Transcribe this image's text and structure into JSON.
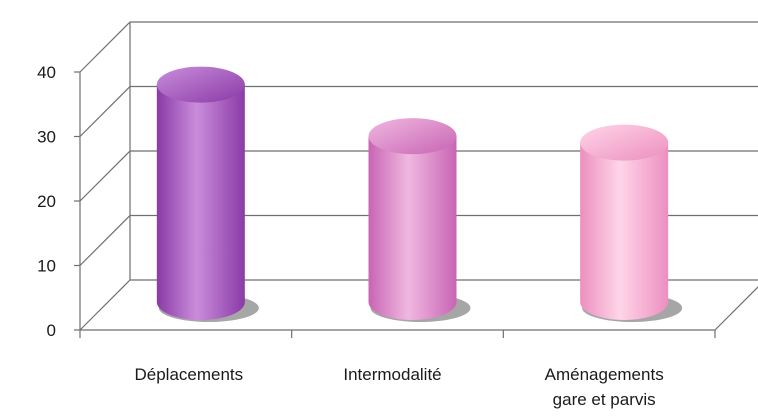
{
  "chart_data": {
    "type": "bar",
    "style": "3d-cylinder",
    "categories": [
      "Déplacements",
      "Intermodalité",
      [
        "Aménagements",
        "gare et parvis"
      ]
    ],
    "values": [
      36.5,
      28.5,
      27.5
    ],
    "ylim": [
      0,
      40
    ],
    "yticks": [
      0,
      10,
      20,
      30,
      40
    ],
    "grid": true,
    "legend": "none",
    "colors": {
      "bars": [
        "#8a3aa6",
        "#c864b4",
        "#ec8fbf"
      ],
      "bar_highlights": [
        "#c98ddb",
        "#f0b8e0",
        "#ffd5e8"
      ],
      "grid": "#6f6f6f",
      "text": "#1a1a1a"
    }
  }
}
